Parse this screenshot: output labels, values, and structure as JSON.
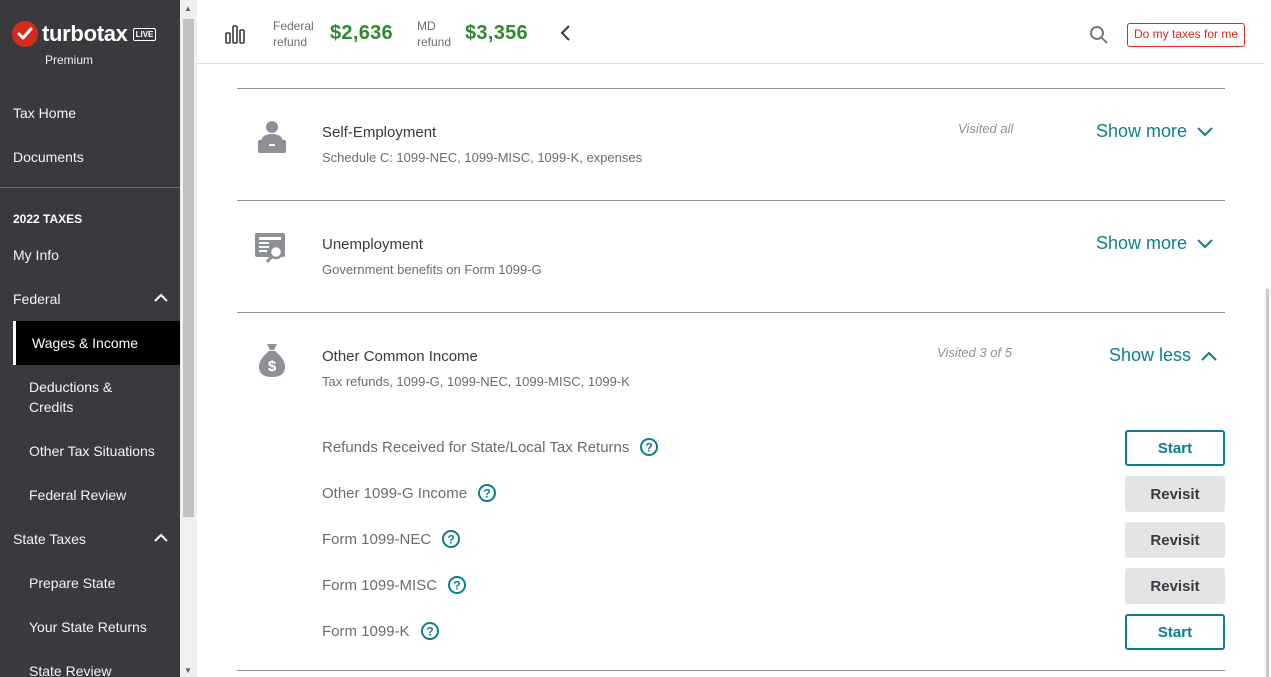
{
  "brand": {
    "name": "turbotax",
    "badge": "LIVE",
    "plan": "Premium",
    "accent_red": "#d52b1e",
    "accent_teal": "#0d7e8a",
    "refund_green": "#2f8a2f"
  },
  "sidebar": {
    "top_items": [
      {
        "label": "Tax Home"
      },
      {
        "label": "Documents"
      }
    ],
    "section_title": "2022 TAXES",
    "items": [
      {
        "label": "My Info"
      },
      {
        "label": "Federal"
      },
      {
        "label": "Wages & Income"
      },
      {
        "label": "Deductions & Credits"
      },
      {
        "label": "Other Tax Situations"
      },
      {
        "label": "Federal Review"
      },
      {
        "label": "State Taxes"
      },
      {
        "label": "Prepare State"
      },
      {
        "label": "Your State Returns"
      },
      {
        "label": "State Review"
      }
    ],
    "active_item": "Wages & Income"
  },
  "header": {
    "federal_label_1": "Federal",
    "federal_label_2": "refund",
    "federal_amount": "$2,636",
    "state_label_1": "MD",
    "state_label_2": "refund",
    "state_amount": "$3,356",
    "do_my_taxes_label": "Do my taxes for me"
  },
  "categories": [
    {
      "title": "Self-Employment",
      "subtitle": "Schedule C: 1099-NEC, 1099-MISC, 1099-K, expenses",
      "visited": "Visited all",
      "toggle": "Show more",
      "icon": "person-at-desk-icon"
    },
    {
      "title": "Unemployment",
      "subtitle": "Government benefits on Form 1099-G",
      "visited": "",
      "toggle": "Show more",
      "icon": "document-magnifier-icon"
    },
    {
      "title": "Other Common Income",
      "subtitle": "Tax refunds, 1099-G, 1099-NEC, 1099-MISC, 1099-K",
      "visited": "Visited 3 of 5",
      "toggle": "Show less",
      "icon": "money-bag-icon"
    }
  ],
  "sub_items": [
    {
      "label": "Refunds Received for State/Local Tax Returns",
      "action": "Start"
    },
    {
      "label": "Other 1099-G Income",
      "action": "Revisit"
    },
    {
      "label": "Form 1099-NEC",
      "action": "Revisit"
    },
    {
      "label": "Form 1099-MISC",
      "action": "Revisit"
    },
    {
      "label": "Form 1099-K",
      "action": "Start"
    }
  ]
}
